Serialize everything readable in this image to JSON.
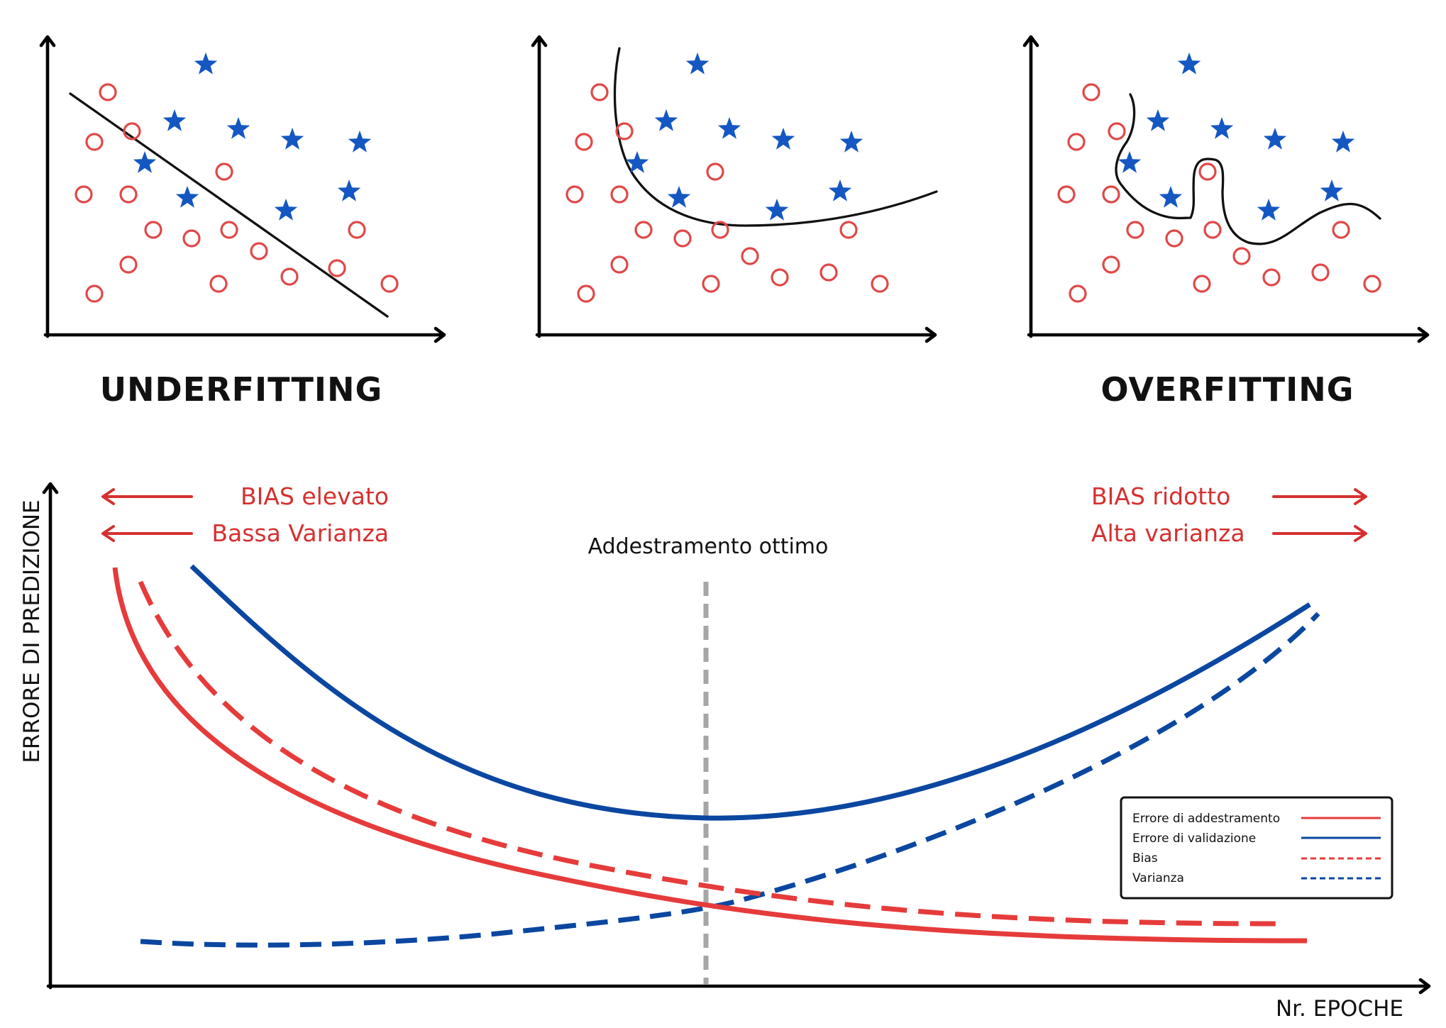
{
  "panels": [
    {
      "id": "underfit",
      "title": "UNDERFITTING",
      "circles": [
        [
          152,
          130
        ],
        [
          133,
          200
        ],
        [
          186,
          185
        ],
        [
          118,
          274
        ],
        [
          181,
          274
        ],
        [
          316,
          242
        ],
        [
          216,
          324
        ],
        [
          270,
          336
        ],
        [
          323,
          324
        ],
        [
          365,
          354
        ],
        [
          408,
          390
        ],
        [
          475,
          378
        ],
        [
          503,
          324
        ],
        [
          549,
          400
        ],
        [
          181,
          373
        ],
        [
          308,
          400
        ],
        [
          133,
          414
        ]
      ],
      "stars": [
        [
          290,
          91
        ],
        [
          246,
          171
        ],
        [
          336,
          182
        ],
        [
          412,
          197
        ],
        [
          507,
          201
        ],
        [
          204,
          230
        ],
        [
          264,
          279
        ],
        [
          403,
          297
        ],
        [
          492,
          270
        ]
      ]
    },
    {
      "id": "goodfit",
      "title": "",
      "circles": [
        [
          845,
          130
        ],
        [
          823,
          200
        ],
        [
          880,
          185
        ],
        [
          810,
          274
        ],
        [
          873,
          274
        ],
        [
          1008,
          242
        ],
        [
          907,
          324
        ],
        [
          962,
          336
        ],
        [
          1015,
          324
        ],
        [
          1057,
          361
        ],
        [
          1099,
          391
        ],
        [
          1168,
          384
        ],
        [
          1196,
          324
        ],
        [
          1240,
          400
        ],
        [
          873,
          373
        ],
        [
          1002,
          400
        ],
        [
          826,
          414
        ]
      ],
      "stars": [
        [
          983,
          91
        ],
        [
          939,
          171
        ],
        [
          1028,
          182
        ],
        [
          1104,
          197
        ],
        [
          1200,
          201
        ],
        [
          898,
          230
        ],
        [
          957,
          279
        ],
        [
          1095,
          297
        ],
        [
          1184,
          270
        ]
      ]
    },
    {
      "id": "overfit",
      "title": "OVERFITTING",
      "circles": [
        [
          1538,
          130
        ],
        [
          1517,
          200
        ],
        [
          1574,
          185
        ],
        [
          1503,
          274
        ],
        [
          1566,
          274
        ],
        [
          1702,
          242
        ],
        [
          1600,
          324
        ],
        [
          1655,
          336
        ],
        [
          1709,
          324
        ],
        [
          1750,
          361
        ],
        [
          1792,
          391
        ],
        [
          1861,
          384
        ],
        [
          1890,
          324
        ],
        [
          1934,
          400
        ],
        [
          1566,
          373
        ],
        [
          1694,
          400
        ],
        [
          1519,
          414
        ]
      ],
      "stars": [
        [
          1676,
          91
        ],
        [
          1632,
          171
        ],
        [
          1722,
          182
        ],
        [
          1797,
          197
        ],
        [
          1893,
          201
        ],
        [
          1592,
          230
        ],
        [
          1650,
          279
        ],
        [
          1788,
          297
        ],
        [
          1877,
          270
        ]
      ]
    }
  ],
  "labels": {
    "left_bias": "BIAS elevato",
    "left_variance": "Bassa Varianza",
    "right_bias": "BIAS ridotto",
    "right_variance": "Alta varianza",
    "optimum": "Addestramento ottimo",
    "y_axis": "ERRORE DI PREDIZIONE",
    "x_axis": "Nr. EPOCHE"
  },
  "legend": [
    {
      "label": "Errore di addestramento",
      "color": "#e63b3b",
      "style": "solid"
    },
    {
      "label": "Errore di validazione",
      "color": "#0b47a0",
      "style": "solid"
    },
    {
      "label": "Bias",
      "color": "#e63b3b",
      "style": "dashed"
    },
    {
      "label": "Varianza",
      "color": "#0b47a0",
      "style": "dashed"
    }
  ],
  "colors": {
    "red": "#e63b3b",
    "red_text": "#d63030",
    "blue": "#0b47a0",
    "star_blue": "#1457c2",
    "circle_red": "#e04848",
    "optimum_line": "#a6a6a6"
  },
  "icons": {
    "class_a": "circle-icon",
    "class_b": "star-icon",
    "arrow_left": "arrow-left-icon",
    "arrow_right": "arrow-right-icon"
  }
}
